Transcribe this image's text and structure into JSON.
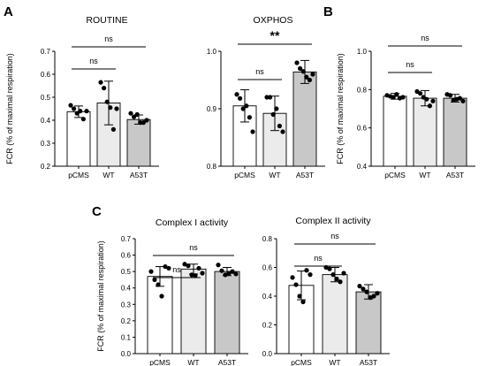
{
  "panel_letters": {
    "a": "A",
    "b": "B",
    "c": "C"
  },
  "chart_data": [
    {
      "id": "routine",
      "type": "bar",
      "title": "ROUTINE",
      "ylabel": "FCR (% of maximal respiration)",
      "ylim": [
        0.2,
        0.7
      ],
      "yticks": [
        "0.2",
        "0.3",
        "0.4",
        "0.5",
        "0.6",
        "0.7"
      ],
      "categories": [
        "pCMS",
        "WT",
        "A53T"
      ],
      "colors": [
        "#ffffff",
        "#ebebeb",
        "#c8c8c8"
      ],
      "means": [
        0.437,
        0.475,
        0.403
      ],
      "errors": [
        0.025,
        0.095,
        0.02
      ],
      "points": [
        [
          0.465,
          0.45,
          0.43,
          0.44,
          0.405,
          0.44
        ],
        [
          0.565,
          0.54,
          0.48,
          0.455,
          0.36,
          0.45
        ],
        [
          0.43,
          0.415,
          0.425,
          0.39,
          0.39,
          0.4
        ]
      ],
      "significance": [
        {
          "from": 0,
          "to": 1,
          "label": "ns"
        },
        {
          "from": 0,
          "to": 2,
          "label": "ns"
        }
      ]
    },
    {
      "id": "oxphos",
      "type": "bar",
      "title": "OXPHOS",
      "ylabel": "",
      "ylim": [
        0.8,
        1.0
      ],
      "yticks": [
        "0.8",
        "0.9",
        "1.0"
      ],
      "categories": [
        "pCMS",
        "WT",
        "A53T"
      ],
      "colors": [
        "#ffffff",
        "#ebebeb",
        "#c8c8c8"
      ],
      "means": [
        0.905,
        0.892,
        0.964
      ],
      "errors": [
        0.028,
        0.03,
        0.02
      ],
      "points": [
        [
          0.925,
          0.918,
          0.9,
          0.905,
          0.885,
          0.86
        ],
        [
          0.92,
          0.92,
          0.89,
          0.9,
          0.87,
          0.86
        ],
        [
          0.98,
          0.97,
          0.965,
          0.955,
          0.95,
          0.96
        ]
      ],
      "significance": [
        {
          "from": 0,
          "to": 1,
          "label": "ns"
        },
        {
          "from": 0,
          "to": 2,
          "label": "**"
        }
      ]
    },
    {
      "id": "panel-b",
      "type": "bar",
      "title": "",
      "ylabel": "FCR (% of maximal respiration)",
      "ylim": [
        0.4,
        1.0
      ],
      "yticks": [
        "0.4",
        "0.6",
        "0.8",
        "1.0"
      ],
      "categories": [
        "pCMS",
        "WT",
        "A53T"
      ],
      "colors": [
        "#ffffff",
        "#ebebeb",
        "#c8c8c8"
      ],
      "means": [
        0.765,
        0.755,
        0.755
      ],
      "errors": [
        0.015,
        0.04,
        0.02
      ],
      "points": [
        [
          0.77,
          0.765,
          0.76,
          0.775,
          0.755,
          0.76
        ],
        [
          0.79,
          0.78,
          0.76,
          0.75,
          0.715,
          0.74
        ],
        [
          0.775,
          0.77,
          0.745,
          0.75,
          0.755,
          0.74
        ]
      ],
      "significance": [
        {
          "from": 0,
          "to": 1,
          "label": "ns"
        },
        {
          "from": 0,
          "to": 2,
          "label": "ns"
        }
      ]
    },
    {
      "id": "complex-1",
      "type": "bar",
      "title": "Complex I activity",
      "ylabel": "FCR (% of maximal respiration)",
      "ylim": [
        0.0,
        0.7
      ],
      "yticks": [
        "0.0",
        "0.1",
        "0.2",
        "0.3",
        "0.4",
        "0.5",
        "0.6",
        "0.7"
      ],
      "categories": [
        "pCMS",
        "WT",
        "A53T"
      ],
      "colors": [
        "#ffffff",
        "#ebebeb",
        "#c8c8c8"
      ],
      "means": [
        0.47,
        0.515,
        0.5
      ],
      "errors": [
        0.06,
        0.03,
        0.025
      ],
      "points": [
        [
          0.5,
          0.45,
          0.42,
          0.35,
          0.53,
          0.52
        ],
        [
          0.545,
          0.535,
          0.48,
          0.475,
          0.52,
          0.49
        ],
        [
          0.54,
          0.505,
          0.48,
          0.49,
          0.5,
          0.485
        ]
      ],
      "significance": [
        {
          "from": 0,
          "to": 1,
          "label": "ns"
        },
        {
          "from": 0,
          "to": 2,
          "label": "ns"
        }
      ]
    },
    {
      "id": "complex-2",
      "type": "bar",
      "title": "Complex II activity",
      "ylabel": "",
      "ylim": [
        0.0,
        0.8
      ],
      "yticks": [
        "0.0",
        "0.2",
        "0.4",
        "0.6",
        "0.8"
      ],
      "categories": [
        "pCMS",
        "WT",
        "A53T"
      ],
      "colors": [
        "#ffffff",
        "#ebebeb",
        "#c8c8c8"
      ],
      "means": [
        0.475,
        0.55,
        0.43
      ],
      "errors": [
        0.1,
        0.05,
        0.05
      ],
      "points": [
        [
          0.53,
          0.48,
          0.4,
          0.36,
          0.58,
          0.55
        ],
        [
          0.6,
          0.59,
          0.55,
          0.52,
          0.5,
          0.56
        ],
        [
          0.47,
          0.45,
          0.43,
          0.39,
          0.4,
          0.42
        ]
      ],
      "significance": [
        {
          "from": 0,
          "to": 1,
          "label": "ns"
        },
        {
          "from": 0,
          "to": 2,
          "label": "ns"
        }
      ]
    }
  ]
}
